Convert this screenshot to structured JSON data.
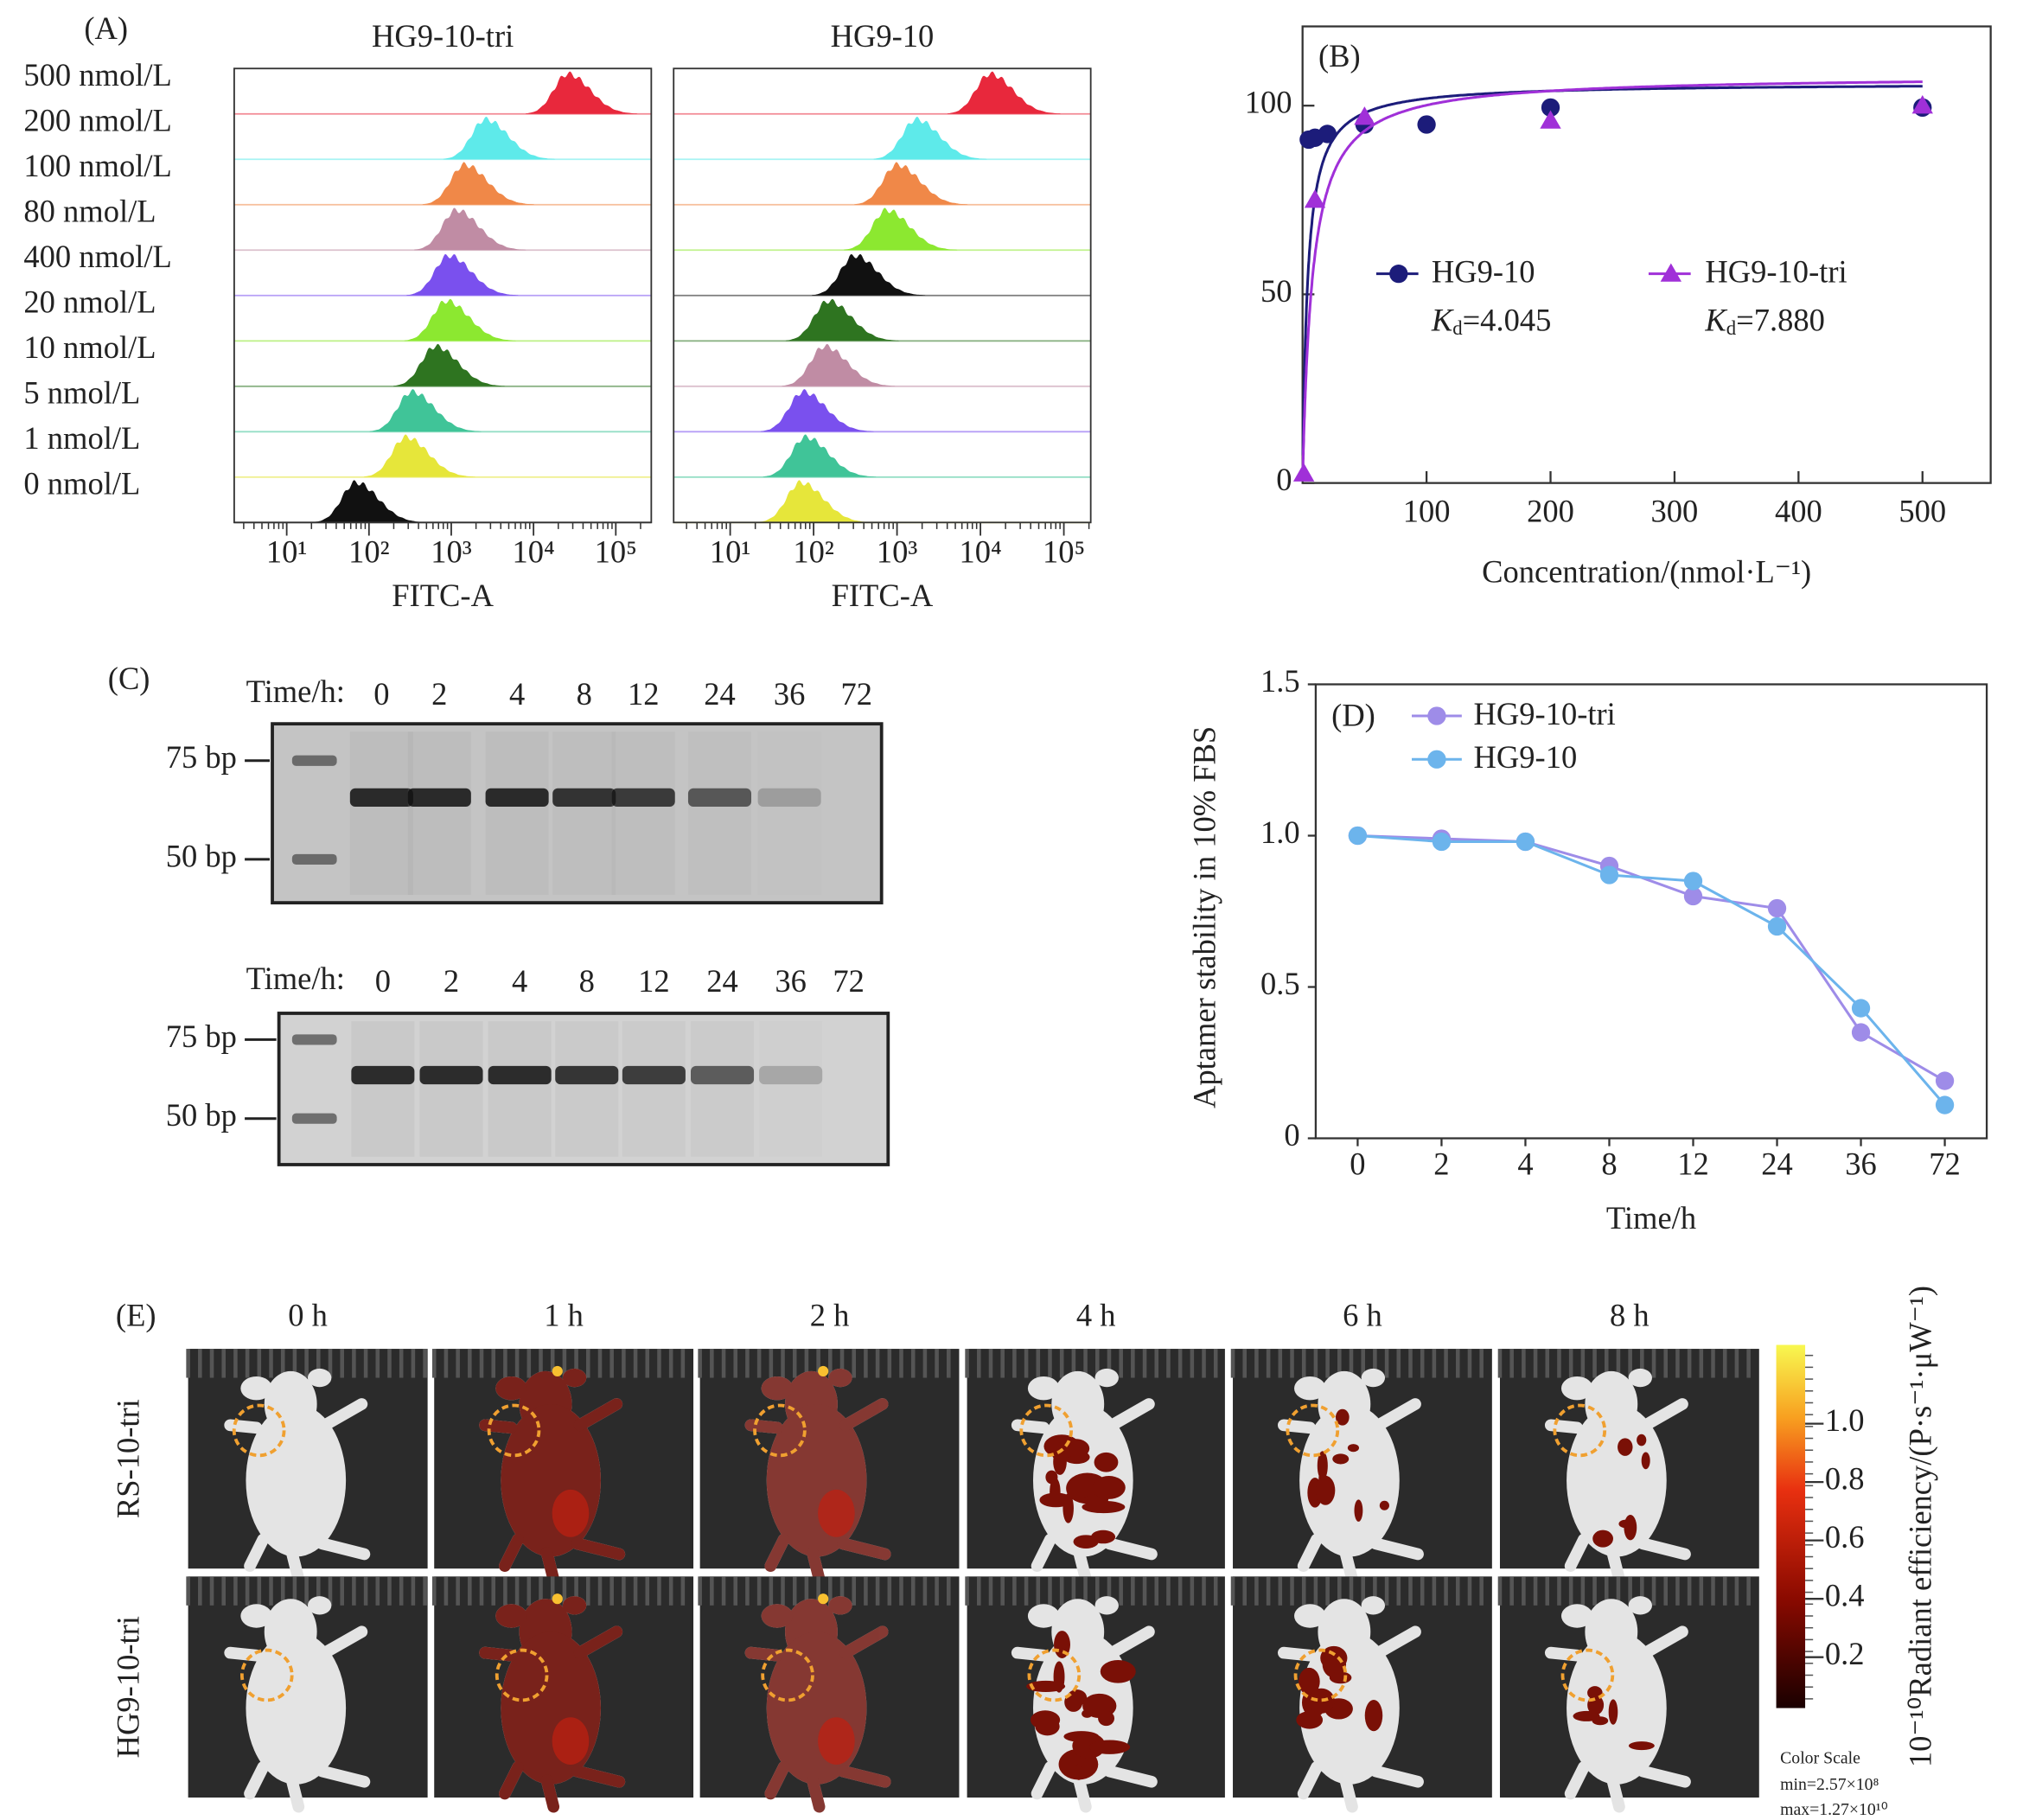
{
  "chart_data": [
    {
      "type": "ridgeline",
      "panel_label": "(A)",
      "title": "HG9-10-tri",
      "xlabel": "FITC-A",
      "categories": [
        "500 nmol/L",
        "200 nmol/L",
        "100 nmol/L",
        "80 nmol/L",
        "400 nmol/L",
        "20 nmol/L",
        "10 nmol/L",
        "5 nmol/L",
        "1 nmol/L",
        "0 nmol/L"
      ],
      "values": [
        26000,
        2600,
        1450,
        1150,
        930,
        870,
        640,
        330,
        280,
        69
      ],
      "colors": [
        "#e8283c",
        "#5eeaea",
        "#f08848",
        "#c08ca4",
        "#7a50ee",
        "#8ce830",
        "#2e7420",
        "#40c498",
        "#e6e63a",
        "#111111"
      ],
      "log_x": true,
      "xlim": [
        2.3,
        270000
      ],
      "xticks": [
        {
          "value": 10,
          "label": "10¹"
        },
        {
          "value": 100,
          "label": "10²"
        },
        {
          "value": 1000,
          "label": "10³"
        },
        {
          "value": 10000,
          "label": "10⁴"
        },
        {
          "value": 100000,
          "label": "10⁵"
        }
      ]
    },
    {
      "type": "ridgeline",
      "title": "HG9-10",
      "xlabel": "FITC-A",
      "values": [
        13000,
        1700,
        1000,
        750,
        310,
        150,
        135,
        75,
        80,
        70
      ],
      "colors": [
        "#e8283c",
        "#5eeaea",
        "#f08848",
        "#8ce830",
        "#111111",
        "#2e7420",
        "#c08ca4",
        "#7a50ee",
        "#40c498",
        "#e6e63a"
      ],
      "log_x": true,
      "xlim": [
        2.1,
        210000
      ],
      "xticks": [
        {
          "value": 10,
          "label": "10¹"
        },
        {
          "value": 100,
          "label": "10²"
        },
        {
          "value": 1000,
          "label": "10³"
        },
        {
          "value": 10000,
          "label": "10⁴"
        },
        {
          "value": 100000,
          "label": "10⁵"
        }
      ]
    },
    {
      "type": "scatter",
      "panel_label": "(B)",
      "xlabel": "Concentration/(nmol·L⁻¹)",
      "xlim": [
        0,
        555
      ],
      "ylim": [
        0,
        121
      ],
      "xticks": [
        100,
        200,
        300,
        400,
        500
      ],
      "yticks": [
        0,
        50,
        100
      ],
      "series": [
        {
          "name": "HG9-10",
          "color": "#1c1c7a",
          "marker": "circle",
          "x": [
            5,
            10,
            20,
            50,
            100,
            200,
            500
          ],
          "values": [
            91,
            91.5,
            92.5,
            95,
            95,
            99.5,
            99.5
          ],
          "kd": 4.045,
          "bmax": 106,
          "kd_text": [
            "K",
            "d",
            "=4.045"
          ]
        },
        {
          "name": "HG9-10-tri",
          "color": "#a030d8",
          "marker": "triangle",
          "x": [
            1,
            10,
            50,
            200,
            500
          ],
          "values": [
            2.5,
            75,
            97,
            96,
            100
          ],
          "kd": 7.88,
          "bmax": 108,
          "kd_text": [
            "K",
            "d",
            "=7.880"
          ]
        }
      ]
    },
    {
      "type": "line",
      "panel_label": "(D)",
      "xlabel": "Time/h",
      "ylabel": "Aptamer stability in 10% FBS",
      "categories": [
        "0",
        "2",
        "4",
        "8",
        "12",
        "24",
        "36",
        "72"
      ],
      "ylim": [
        0,
        1.5
      ],
      "yticks": [
        0,
        0.5,
        {
          "value": 1,
          "label": "1.0"
        },
        1.5
      ],
      "series": [
        {
          "name": "HG9-10-tri",
          "color": "#9e8ce8",
          "values": [
            1.0,
            0.99,
            0.98,
            0.9,
            0.8,
            0.76,
            0.35,
            0.19
          ]
        },
        {
          "name": "HG9-10",
          "color": "#6cb4ec",
          "values": [
            1.0,
            0.98,
            0.98,
            0.87,
            0.85,
            0.7,
            0.43,
            0.11
          ]
        }
      ]
    }
  ],
  "panel_c": {
    "label": "(C)",
    "gels": [
      {
        "time_label": "Time/h:",
        "lanes": [
          "0",
          "2",
          "4",
          "8",
          "12",
          "24",
          "36",
          "72"
        ],
        "markers": [
          "75 bp",
          "50 bp"
        ]
      },
      {
        "time_label": "Time/h:",
        "lanes": [
          "0",
          "2",
          "4",
          "8",
          "12",
          "24",
          "36",
          "72"
        ],
        "markers": [
          "75 bp",
          "50 bp"
        ]
      }
    ]
  },
  "panel_e": {
    "label": "(E)",
    "times": [
      "0 h",
      "1 h",
      "2 h",
      "4 h",
      "6 h",
      "8 h"
    ],
    "rows": [
      "RS-10-tri",
      "HG9-10-tri"
    ],
    "colorbar": {
      "lim": [
        0.0257,
        1.27
      ],
      "ticks": [
        {
          "value": 1,
          "label": "1.0"
        },
        0.8,
        0.6,
        0.4,
        0.2
      ],
      "label": "10⁻¹⁰Radiant efficiency/(P·s⁻¹·μW⁻¹)",
      "scale_title": "Color Scale",
      "min": "min=2.57×10⁸",
      "max": "max=1.27×10¹⁰"
    }
  }
}
